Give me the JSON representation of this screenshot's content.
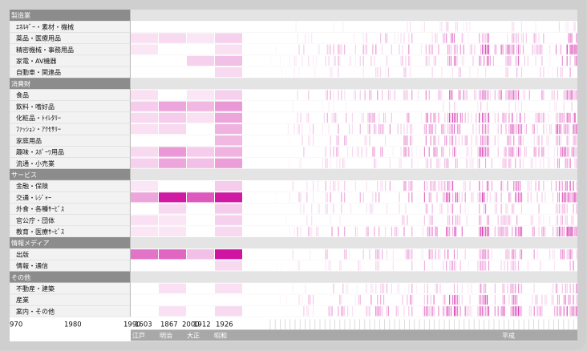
{
  "chart_data": {
    "type": "heatmap",
    "title": "",
    "colors": {
      "base": "#ffffff",
      "max": "#cc0099",
      "category_bar": "#8c8c8c",
      "row_light": "#f2f2f2",
      "row_line": "#d8d8d8",
      "era_bar": "#a8a8a8"
    },
    "groups": [
      {
        "name": "製造業",
        "rows": [
          "ｴﾈﾙｷﾞｰ・素材・機械",
          "薬品・医療用品",
          "精密機械・事務用品",
          "家電・AV機器",
          "自動車・関連品"
        ]
      },
      {
        "name": "消費財",
        "rows": [
          "食品",
          "飲料・嗜好品",
          "化粧品・ﾄｲﾚﾀﾘｰ",
          "ﾌｧｯｼｮﾝ・ｱｸｾｻﾘｰ",
          "家庭用品",
          "趣味・ｽﾎﾟｰﾂ用品",
          "流通・小売業"
        ]
      },
      {
        "name": "サービス",
        "rows": [
          "金融・保険",
          "交通・ﾚｼﾞｬｰ",
          "外食・各種ｻｰﾋﾞｽ",
          "官公庁・団体",
          "教育・医療ｻｰﾋﾞｽ"
        ]
      },
      {
        "name": "情報メディア",
        "rows": [
          "出版",
          "情報・通信"
        ]
      },
      {
        "name": "その他",
        "rows": [
          "不動産・建築",
          "産業",
          "案内・その他"
        ]
      }
    ],
    "x_ticks": [
      "970",
      "1980",
      "1990",
      "1603",
      "1867",
      "2000",
      "1912",
      "1926"
    ],
    "eras": [
      "江戸",
      "明治",
      "大正",
      "昭和",
      "平成"
    ],
    "era_intensity": {
      "ｴﾈﾙｷﾞｰ・素材・機械": [
        0,
        0,
        0,
        0
      ],
      "薬品・医療用品": [
        0.12,
        0.15,
        0.1,
        0.18
      ],
      "精密機械・事務用品": [
        0.1,
        0,
        0,
        0.12
      ],
      "家電・AV機器": [
        0,
        0,
        0.18,
        0.25
      ],
      "自動車・関連品": [
        0,
        0,
        0,
        0.15
      ],
      "食品": [
        0.12,
        0,
        0.1,
        0.18
      ],
      "飲料・嗜好品": [
        0.2,
        0.35,
        0.28,
        0.4
      ],
      "化粧品・ﾄｲﾚﾀﾘｰ": [
        0.15,
        0.2,
        0.12,
        0.35
      ],
      "ﾌｧｯｼｮﾝ・ｱｸｾｻﾘｰ": [
        0.12,
        0.15,
        0,
        0.3
      ],
      "家庭用品": [
        0,
        0,
        0,
        0.28
      ],
      "趣味・ｽﾎﾟｰﾂ用品": [
        0.15,
        0.4,
        0.2,
        0.3
      ],
      "流通・小売業": [
        0.18,
        0.35,
        0.25,
        0.38
      ],
      "金融・保険": [
        0.1,
        0,
        0,
        0.2
      ],
      "交通・ﾚｼﾞｬｰ": [
        0.35,
        0.9,
        0.65,
        0.9
      ],
      "外食・各種ｻｰﾋﾞｽ": [
        0,
        0.15,
        0,
        0.2
      ],
      "官公庁・団体": [
        0.12,
        0.1,
        0,
        0.18
      ],
      "教育・医療ｻｰﾋﾞｽ": [
        0.1,
        0.1,
        0,
        0.15
      ],
      "出版": [
        0.55,
        0.6,
        0.25,
        0.92
      ],
      "情報・通信": [
        0,
        0,
        0,
        0.15
      ],
      "不動産・建築": [
        0,
        0.12,
        0,
        0.12
      ],
      "産業": [
        0,
        0,
        0,
        0
      ],
      "案内・その他": [
        0,
        0.12,
        0,
        0.15
      ]
    },
    "timeline_activity": [
      0.05,
      0.1,
      0.3,
      0.35,
      0.2,
      0.45,
      0.5,
      0.25,
      0.4,
      0.6,
      0.55,
      0.3,
      0.65,
      0.15,
      0.7,
      0.55,
      0.9,
      0.6,
      0.35,
      0.95,
      0.5,
      0.75,
      0.85,
      0.4,
      0.6,
      0.3,
      0.8,
      1.0
    ]
  }
}
